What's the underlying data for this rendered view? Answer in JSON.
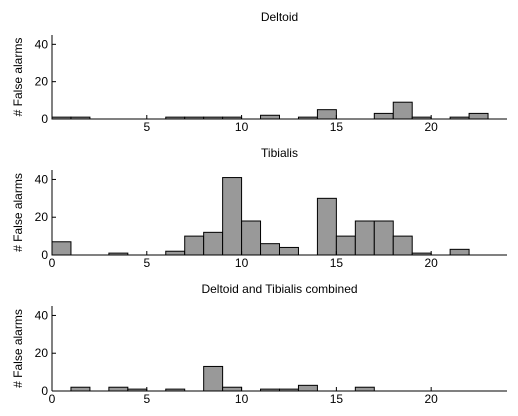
{
  "chart_data": [
    {
      "type": "bar",
      "title": "Deltoid",
      "ylabel": "# False alarms",
      "xlabel": "",
      "xlim": [
        0,
        24
      ],
      "ylim": [
        0,
        45
      ],
      "xticks": [
        "5",
        "10",
        "15",
        "20"
      ],
      "yticks": [
        "0",
        "20",
        "40"
      ],
      "bin_width": 1,
      "x": [
        0.5,
        1.5,
        6.5,
        7.5,
        8.5,
        9.5,
        11.5,
        13.5,
        14.5,
        17.5,
        18.5,
        19.5,
        21.5,
        22.5
      ],
      "values": [
        1,
        1,
        1,
        1,
        1,
        1,
        2,
        1,
        5,
        3,
        9,
        1,
        1,
        3
      ]
    },
    {
      "type": "bar",
      "title": "Tibialis",
      "ylabel": "# False alarms",
      "xlabel": "",
      "xlim": [
        0,
        24
      ],
      "ylim": [
        0,
        45
      ],
      "xticks": [
        "0",
        "5",
        "10",
        "15",
        "20"
      ],
      "yticks": [
        "0",
        "20",
        "40"
      ],
      "bin_width": 1,
      "x": [
        0.5,
        3.5,
        6.5,
        7.5,
        8.5,
        9.5,
        10.5,
        11.5,
        12.5,
        14.5,
        15.5,
        16.5,
        17.5,
        18.5,
        19.5,
        21.5
      ],
      "values": [
        7,
        1,
        2,
        10,
        12,
        41,
        18,
        6,
        4,
        30,
        10,
        18,
        18,
        10,
        1,
        3
      ]
    },
    {
      "type": "bar",
      "title": "Deltoid and Tibialis combined",
      "ylabel": "# False alarms",
      "xlabel": "",
      "xlim": [
        0,
        24
      ],
      "ylim": [
        0,
        45
      ],
      "xticks": [
        "0",
        "5",
        "10",
        "15",
        "20"
      ],
      "yticks": [
        "0",
        "20",
        "40"
      ],
      "bin_width": 1,
      "x": [
        1.5,
        3.5,
        4.5,
        6.5,
        8.5,
        9.5,
        11.5,
        12.5,
        13.5,
        16.5
      ],
      "values": [
        2,
        2,
        1,
        1,
        13,
        2,
        1,
        1,
        3,
        2
      ]
    }
  ],
  "style": {
    "bar_fill": "#999999",
    "bar_stroke": "#000000",
    "axis_color": "#000000",
    "background": "#ffffff"
  }
}
